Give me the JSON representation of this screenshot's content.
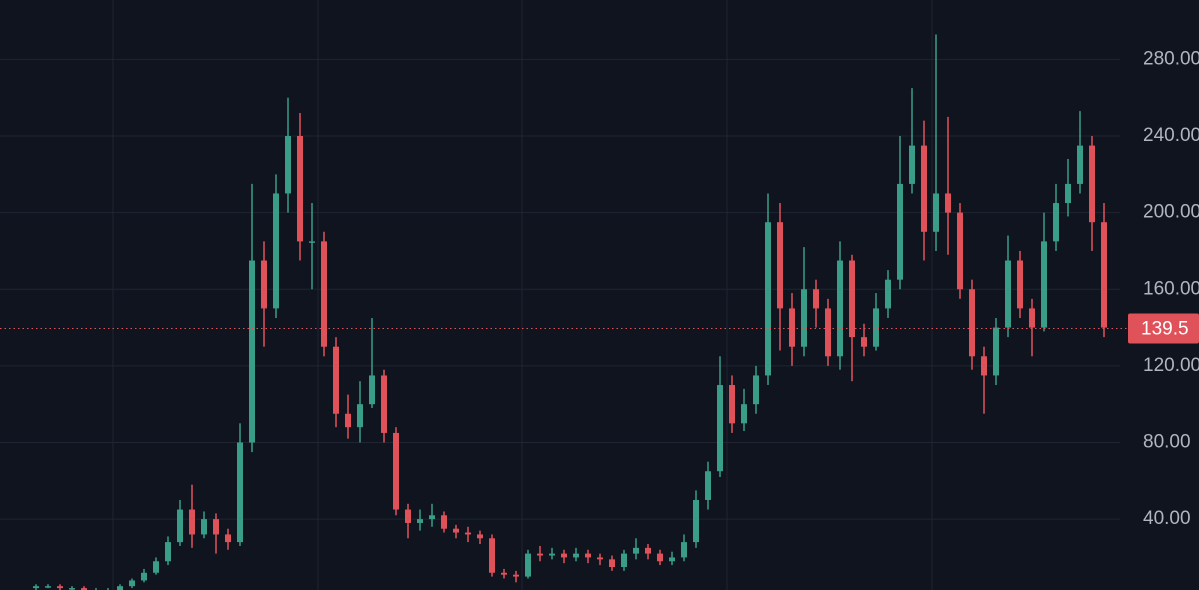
{
  "chart_data": {
    "type": "candlestick",
    "up_color": "#3a9d88",
    "down_color": "#e0525a",
    "grid": true,
    "ylim": [
      3,
      311
    ],
    "yticks": [
      {
        "value": 40,
        "label": "40.00"
      },
      {
        "value": 80,
        "label": "80.00"
      },
      {
        "value": 120,
        "label": "120.00"
      },
      {
        "value": 160,
        "label": "160.00"
      },
      {
        "value": 200,
        "label": "200.00"
      },
      {
        "value": 240,
        "label": "240.00"
      },
      {
        "value": 280,
        "label": "280.00"
      }
    ],
    "last_price": 139.5,
    "open": [
      4,
      5,
      5,
      4,
      4,
      3,
      3,
      3,
      5,
      8,
      12,
      18,
      28,
      45,
      32,
      40,
      32,
      28,
      80,
      175,
      150,
      210,
      240,
      185,
      185,
      130,
      95,
      88,
      100,
      115,
      85,
      45,
      38,
      40,
      42,
      35,
      33,
      32,
      30,
      12,
      11,
      10,
      22,
      21,
      22,
      20,
      22,
      20,
      19,
      15,
      22,
      25,
      22,
      18,
      20,
      28,
      50,
      65,
      110,
      90,
      100,
      115,
      195,
      150,
      130,
      160,
      150,
      125,
      175,
      135,
      130,
      150,
      165,
      215,
      235,
      190,
      210,
      200,
      160,
      125,
      115,
      140,
      175,
      150,
      140,
      185,
      205,
      215,
      235,
      195
    ],
    "high": [
      6,
      6,
      6,
      5,
      5,
      4,
      4,
      6,
      9,
      14,
      20,
      31,
      50,
      58,
      44,
      43,
      35,
      90,
      215,
      185,
      220,
      260,
      252,
      205,
      190,
      135,
      105,
      112,
      145,
      118,
      88,
      48,
      45,
      48,
      44,
      37,
      36,
      34,
      32,
      14,
      13,
      24,
      26,
      25,
      24,
      25,
      24,
      22,
      21,
      24,
      30,
      27,
      24,
      23,
      32,
      55,
      70,
      125,
      115,
      108,
      120,
      210,
      205,
      158,
      182,
      165,
      155,
      185,
      178,
      142,
      158,
      170,
      240,
      265,
      248,
      293,
      250,
      205,
      165,
      130,
      145,
      188,
      180,
      155,
      200,
      215,
      228,
      253,
      240,
      205
    ],
    "low": [
      3,
      4,
      3,
      3,
      2,
      2,
      2,
      2,
      4,
      7,
      11,
      16,
      26,
      25,
      30,
      22,
      24,
      26,
      75,
      130,
      145,
      200,
      175,
      160,
      125,
      88,
      82,
      80,
      98,
      80,
      42,
      30,
      34,
      36,
      33,
      30,
      28,
      27,
      10,
      9,
      7,
      9,
      18,
      19,
      17,
      18,
      17,
      16,
      13,
      13,
      19,
      19,
      16,
      16,
      18,
      25,
      45,
      62,
      85,
      86,
      95,
      110,
      128,
      120,
      125,
      140,
      120,
      118,
      112,
      125,
      128,
      145,
      160,
      210,
      175,
      180,
      178,
      155,
      118,
      95,
      110,
      135,
      145,
      125,
      138,
      180,
      198,
      210,
      180,
      135
    ],
    "close": [
      5,
      5,
      4,
      4,
      3,
      3,
      3,
      5,
      8,
      12,
      18,
      28,
      45,
      32,
      40,
      32,
      28,
      80,
      175,
      150,
      210,
      240,
      185,
      185,
      130,
      95,
      88,
      100,
      115,
      85,
      45,
      38,
      40,
      42,
      35,
      33,
      32,
      30,
      12,
      11,
      10,
      22,
      21,
      22,
      20,
      22,
      20,
      19,
      15,
      22,
      25,
      22,
      18,
      20,
      28,
      50,
      65,
      110,
      90,
      100,
      115,
      195,
      150,
      130,
      160,
      150,
      125,
      175,
      135,
      130,
      150,
      165,
      215,
      235,
      190,
      210,
      200,
      160,
      125,
      115,
      140,
      175,
      150,
      140,
      185,
      205,
      215,
      235,
      195,
      140
    ]
  }
}
